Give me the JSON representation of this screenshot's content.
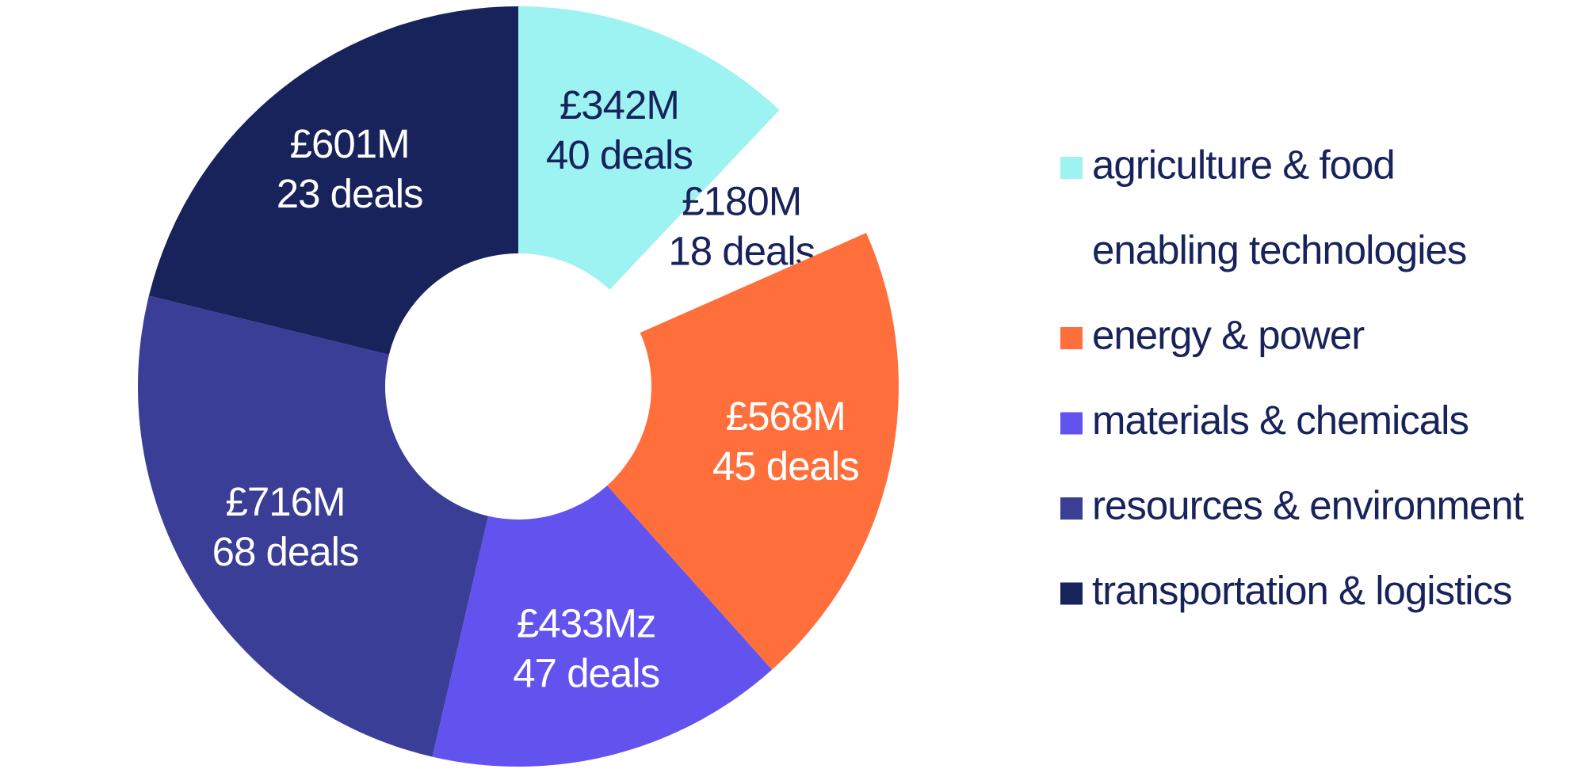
{
  "chart_data": {
    "type": "donut",
    "categories": [
      "agriculture & food",
      "enabling technologies",
      "energy & power",
      "materials & chemicals",
      "resources & environment",
      "transportation & logistics"
    ],
    "values": [
      342,
      180,
      568,
      433,
      716,
      601
    ],
    "value_labels": [
      "£342M",
      "£180M",
      "£568M",
      "£433Mz",
      "£716M",
      "£601M"
    ],
    "deal_labels": [
      "40 deals",
      "18 deals",
      "45 deals",
      "47 deals",
      "68 deals",
      "23 deals"
    ],
    "colors": [
      "#9cf3f1",
      "#ffffff",
      "#ff6f3b",
      "#6353ee",
      "#3a3e97",
      "#18225b"
    ]
  }
}
